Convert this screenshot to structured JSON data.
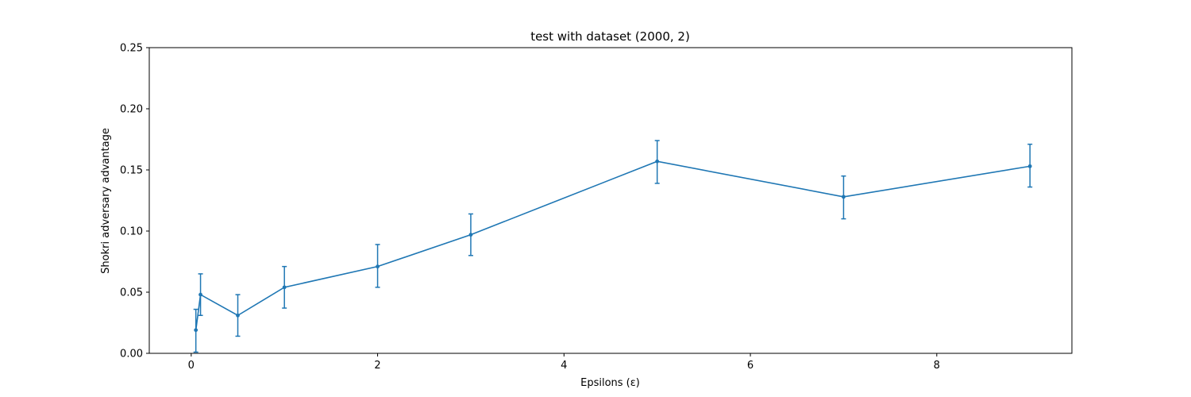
{
  "chart_data": {
    "type": "line",
    "title": "test with dataset (2000, 2)",
    "xlabel": "Epsilons (ε)",
    "ylabel": "Shokri adversary advantage",
    "xlim": [
      -0.45,
      9.45
    ],
    "ylim": [
      0.0,
      0.25
    ],
    "xticks": [
      0,
      2,
      4,
      6,
      8
    ],
    "xtick_labels": [
      "0",
      "2",
      "4",
      "6",
      "8"
    ],
    "yticks": [
      0.0,
      0.05,
      0.1,
      0.15,
      0.2,
      0.25
    ],
    "ytick_labels": [
      "0.00",
      "0.05",
      "0.10",
      "0.15",
      "0.20",
      "0.25"
    ],
    "grid": false,
    "color": "#1f77b4",
    "series": [
      {
        "x": [
          0.05,
          0.1,
          0.5,
          1,
          2,
          3,
          5,
          7,
          9
        ],
        "y": [
          0.019,
          0.048,
          0.031,
          0.054,
          0.071,
          0.097,
          0.157,
          0.128,
          0.153
        ],
        "err_low": [
          0.001,
          0.031,
          0.014,
          0.037,
          0.054,
          0.08,
          0.139,
          0.11,
          0.136
        ],
        "err_high": [
          0.036,
          0.065,
          0.048,
          0.071,
          0.089,
          0.114,
          0.174,
          0.145,
          0.171
        ]
      }
    ]
  }
}
